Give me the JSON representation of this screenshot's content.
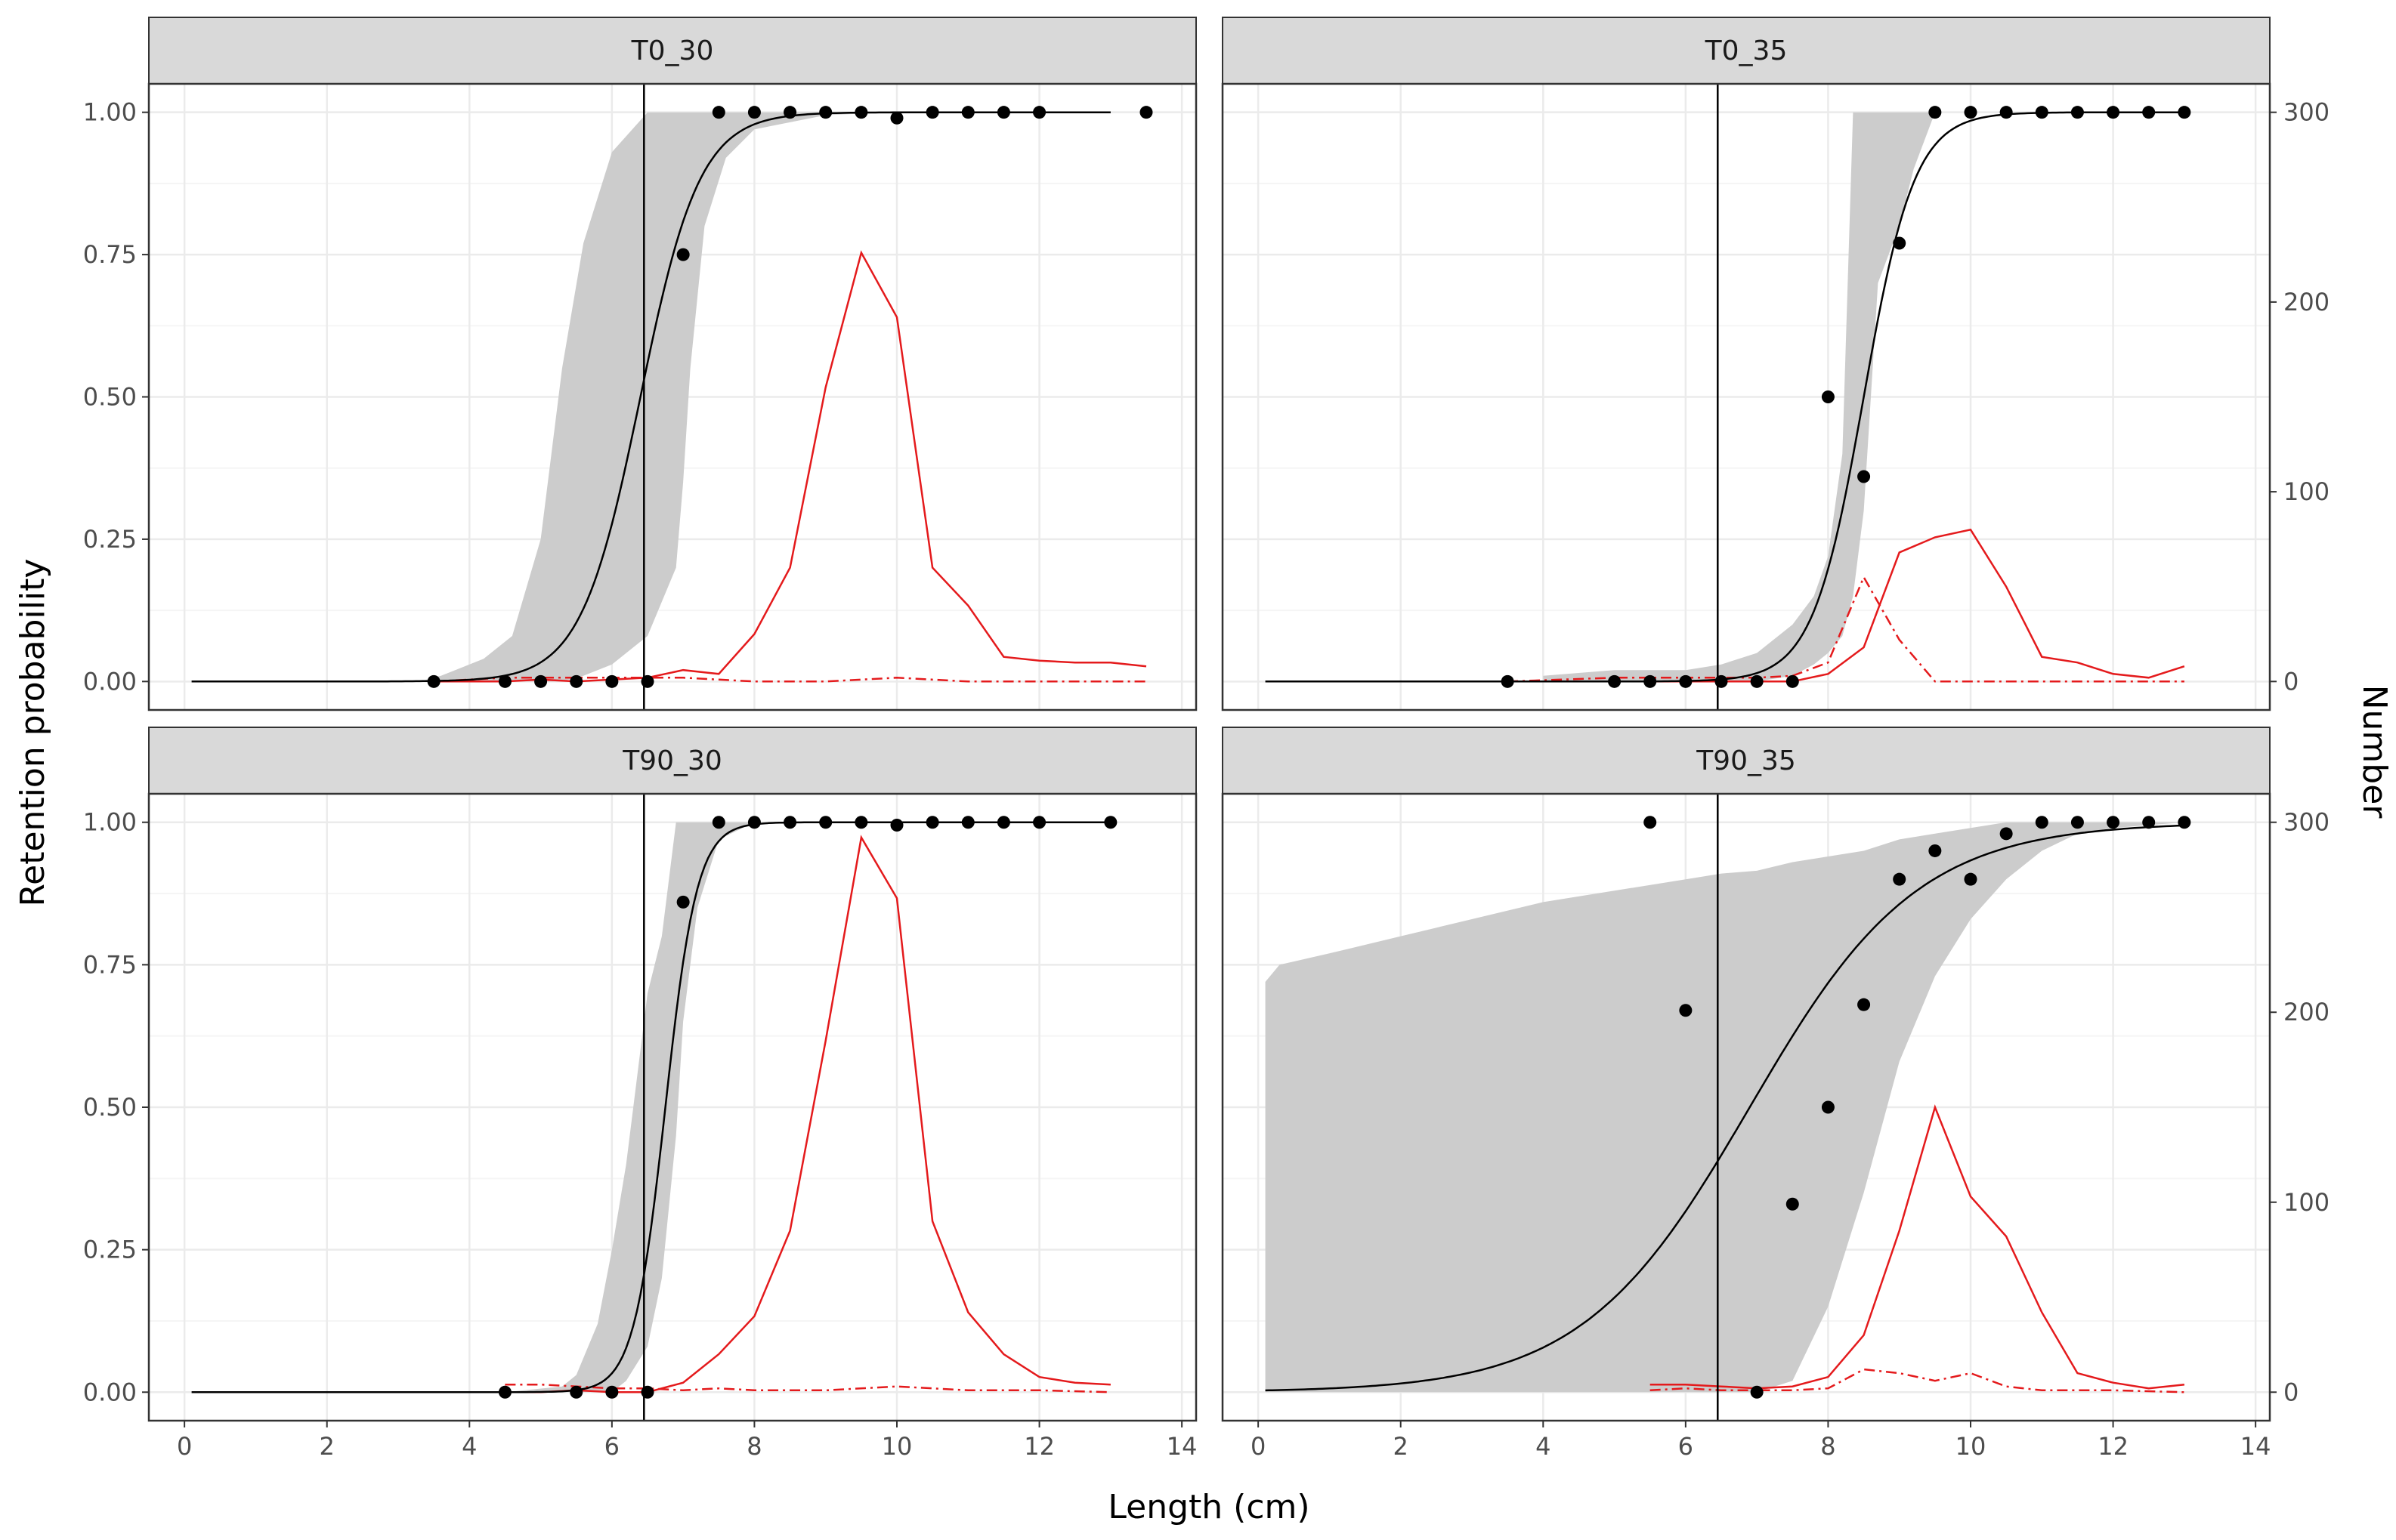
{
  "colors": {
    "strip_bg": "#d9d9d9",
    "border": "#333333",
    "grid_major": "#ebebeb",
    "grid_minor": "#f5f5f5",
    "ribbon": "#cccccc",
    "curve": "#000000",
    "points": "#000000",
    "red": "#e41a1c",
    "vline": "#000000"
  },
  "chart_data": {
    "type": "line",
    "xlabel": "Length (cm)",
    "ylabel_left": "Retention probability",
    "ylabel_right": "Number",
    "xlim": [
      -0.5,
      14.2
    ],
    "x_ticks": [
      0,
      2,
      4,
      6,
      8,
      10,
      12,
      14
    ],
    "x_tick_labels": [
      "0",
      "2",
      "4",
      "6",
      "8",
      "10",
      "12",
      "14"
    ],
    "ylim": [
      -0.05,
      1.05
    ],
    "y_ticks": [
      0,
      0.25,
      0.5,
      0.75,
      1
    ],
    "y_tick_labels": [
      "0.00",
      "0.25",
      "0.50",
      "0.75",
      "1.00"
    ],
    "y2_ticks": [
      0,
      100,
      200,
      300
    ],
    "y2_tick_labels": [
      "0",
      "100",
      "200",
      "300"
    ],
    "y2_scale_max": 300,
    "vline_x": 6.45,
    "panels": [
      {
        "title": "T0_30",
        "curve": {
          "model": "logistic",
          "L50": 6.4,
          "slope": 2.4,
          "x_from": 0.1,
          "x_to": 13.0
        },
        "ribbon": [
          [
            3.3,
            0,
            0
          ],
          [
            3.6,
            0,
            0.01
          ],
          [
            4.2,
            0,
            0.04
          ],
          [
            4.6,
            0,
            0.08
          ],
          [
            5.0,
            0,
            0.25
          ],
          [
            5.3,
            0,
            0.55
          ],
          [
            5.6,
            0.01,
            0.77
          ],
          [
            6.0,
            0.03,
            0.93
          ],
          [
            6.5,
            0.08,
            1
          ],
          [
            6.9,
            0.2,
            1
          ],
          [
            7.0,
            0.35,
            1
          ],
          [
            7.1,
            0.55,
            1
          ],
          [
            7.3,
            0.8,
            1
          ],
          [
            7.6,
            0.92,
            1
          ],
          [
            8.0,
            0.97,
            1
          ],
          [
            9.0,
            0.995,
            1
          ],
          [
            10.0,
            1,
            1
          ]
        ],
        "points": [
          [
            3.5,
            0
          ],
          [
            4.5,
            0
          ],
          [
            5.0,
            0
          ],
          [
            5.5,
            0
          ],
          [
            6.0,
            0
          ],
          [
            6.5,
            0
          ],
          [
            7.0,
            0.75
          ],
          [
            7.5,
            1
          ],
          [
            8.0,
            1
          ],
          [
            8.5,
            1
          ],
          [
            9.0,
            1
          ],
          [
            9.5,
            1
          ],
          [
            10.0,
            0.99
          ],
          [
            10.5,
            1
          ],
          [
            11.0,
            1
          ],
          [
            11.5,
            1
          ],
          [
            12.0,
            1
          ],
          [
            13.5,
            1
          ]
        ],
        "red_solid": [
          [
            3.5,
            0
          ],
          [
            4.5,
            0
          ],
          [
            5.0,
            1
          ],
          [
            5.5,
            0
          ],
          [
            6.0,
            1
          ],
          [
            6.5,
            2
          ],
          [
            7.0,
            6
          ],
          [
            7.5,
            4
          ],
          [
            8.0,
            25
          ],
          [
            8.5,
            60
          ],
          [
            9.0,
            155
          ],
          [
            9.5,
            226
          ],
          [
            10.0,
            192
          ],
          [
            10.5,
            60
          ],
          [
            11.0,
            40
          ],
          [
            11.5,
            13
          ],
          [
            12.0,
            11
          ],
          [
            12.5,
            10
          ],
          [
            13.0,
            10
          ],
          [
            13.5,
            8
          ]
        ],
        "red_dash": [
          [
            3.5,
            0
          ],
          [
            4.5,
            2
          ],
          [
            5.0,
            2
          ],
          [
            5.5,
            2
          ],
          [
            6.0,
            2
          ],
          [
            6.5,
            2
          ],
          [
            7.0,
            2
          ],
          [
            7.5,
            1
          ],
          [
            8.0,
            0
          ],
          [
            9.0,
            0
          ],
          [
            10.0,
            2
          ],
          [
            11.0,
            0
          ],
          [
            12.0,
            0
          ],
          [
            13.0,
            0
          ],
          [
            13.5,
            0
          ]
        ]
      },
      {
        "title": "T0_35",
        "curve": {
          "model": "logistic",
          "L50": 8.5,
          "slope": 2.8,
          "x_from": 0.1,
          "x_to": 13.0
        },
        "ribbon": [
          [
            4.0,
            0,
            0.01
          ],
          [
            5.0,
            0,
            0.02
          ],
          [
            6.0,
            0,
            0.02
          ],
          [
            6.5,
            0,
            0.03
          ],
          [
            7.0,
            0,
            0.05
          ],
          [
            7.5,
            0.01,
            0.1
          ],
          [
            7.8,
            0.03,
            0.15
          ],
          [
            8.0,
            0.05,
            0.22
          ],
          [
            8.2,
            0.08,
            0.4
          ],
          [
            8.35,
            0.15,
            1
          ],
          [
            8.5,
            0.3,
            1
          ],
          [
            8.7,
            0.7,
            1
          ],
          [
            9.0,
            0.8,
            1
          ],
          [
            9.2,
            0.9,
            1
          ],
          [
            9.5,
            1,
            1
          ]
        ],
        "points": [
          [
            3.5,
            0
          ],
          [
            5.0,
            0
          ],
          [
            5.5,
            0
          ],
          [
            6.0,
            0
          ],
          [
            6.5,
            0
          ],
          [
            7.0,
            0
          ],
          [
            7.5,
            0
          ],
          [
            8.0,
            0.5
          ],
          [
            8.5,
            0.36
          ],
          [
            9.0,
            0.77
          ],
          [
            9.5,
            1
          ],
          [
            10.0,
            1
          ],
          [
            10.5,
            1
          ],
          [
            11.0,
            1
          ],
          [
            11.5,
            1
          ],
          [
            12.0,
            1
          ],
          [
            12.5,
            1
          ],
          [
            13.0,
            1
          ]
        ],
        "red_solid": [
          [
            3.5,
            0
          ],
          [
            4.5,
            0
          ],
          [
            5.0,
            0
          ],
          [
            5.5,
            0
          ],
          [
            6.0,
            0
          ],
          [
            6.5,
            0
          ],
          [
            7.0,
            0
          ],
          [
            7.5,
            0
          ],
          [
            8.0,
            4
          ],
          [
            8.5,
            18
          ],
          [
            9.0,
            68
          ],
          [
            9.5,
            76
          ],
          [
            10.0,
            80
          ],
          [
            10.5,
            50
          ],
          [
            11.0,
            13
          ],
          [
            11.5,
            10
          ],
          [
            12.0,
            4
          ],
          [
            12.5,
            2
          ],
          [
            13.0,
            8
          ]
        ],
        "red_dash": [
          [
            3.5,
            0
          ],
          [
            5.0,
            2
          ],
          [
            6.0,
            2
          ],
          [
            7.0,
            2
          ],
          [
            7.5,
            3
          ],
          [
            8.0,
            10
          ],
          [
            8.5,
            55
          ],
          [
            9.0,
            22
          ],
          [
            9.5,
            0
          ],
          [
            10.0,
            0
          ],
          [
            11.0,
            0
          ],
          [
            12.0,
            0
          ],
          [
            13.0,
            0
          ]
        ]
      },
      {
        "title": "T90_30",
        "curve": {
          "model": "logistic",
          "L50": 6.75,
          "slope": 4.5,
          "x_from": 0.1,
          "x_to": 13.0
        },
        "ribbon": [
          [
            4.5,
            0,
            0
          ],
          [
            5.3,
            0,
            0.01
          ],
          [
            5.5,
            0,
            0.03
          ],
          [
            5.8,
            0,
            0.12
          ],
          [
            6.0,
            0,
            0.25
          ],
          [
            6.2,
            0.02,
            0.4
          ],
          [
            6.5,
            0.08,
            0.7
          ],
          [
            6.7,
            0.2,
            0.8
          ],
          [
            6.9,
            0.45,
            1
          ],
          [
            7.0,
            0.65,
            1
          ],
          [
            7.2,
            0.85,
            1
          ],
          [
            7.5,
            0.97,
            1
          ],
          [
            8.0,
            1,
            1
          ]
        ],
        "points": [
          [
            4.5,
            0
          ],
          [
            5.5,
            0
          ],
          [
            6.0,
            0
          ],
          [
            6.5,
            0
          ],
          [
            7.0,
            0.86
          ],
          [
            7.5,
            1
          ],
          [
            8.0,
            1
          ],
          [
            8.5,
            1
          ],
          [
            9.0,
            1
          ],
          [
            9.5,
            1
          ],
          [
            10.0,
            0.995
          ],
          [
            10.5,
            1
          ],
          [
            11.0,
            1
          ],
          [
            11.5,
            1
          ],
          [
            12.0,
            1
          ],
          [
            13.0,
            1
          ]
        ],
        "red_solid": [
          [
            4.5,
            0
          ],
          [
            5.0,
            0
          ],
          [
            5.5,
            1
          ],
          [
            6.0,
            0
          ],
          [
            6.5,
            0
          ],
          [
            7.0,
            5
          ],
          [
            7.5,
            20
          ],
          [
            8.0,
            40
          ],
          [
            8.5,
            85
          ],
          [
            9.0,
            185
          ],
          [
            9.5,
            292
          ],
          [
            10.0,
            260
          ],
          [
            10.5,
            90
          ],
          [
            11.0,
            42
          ],
          [
            11.5,
            20
          ],
          [
            12.0,
            8
          ],
          [
            12.5,
            5
          ],
          [
            13.0,
            4
          ]
        ],
        "red_dash": [
          [
            4.5,
            4
          ],
          [
            5.0,
            4
          ],
          [
            5.5,
            3
          ],
          [
            6.0,
            2
          ],
          [
            6.5,
            2
          ],
          [
            7.0,
            1
          ],
          [
            7.5,
            2
          ],
          [
            8.0,
            1
          ],
          [
            9.0,
            1
          ],
          [
            10.0,
            3
          ],
          [
            11.0,
            1
          ],
          [
            12.0,
            1
          ],
          [
            13.0,
            0
          ]
        ]
      },
      {
        "title": "T90_35",
        "curve": {
          "model": "logistic",
          "L50": 6.9,
          "slope": 0.85,
          "x_from": 0.1,
          "x_to": 13.0
        },
        "ribbon": [
          [
            0.1,
            0,
            0.72
          ],
          [
            0.3,
            0,
            0.75
          ],
          [
            1.0,
            0,
            0.77
          ],
          [
            2.0,
            0,
            0.8
          ],
          [
            3.0,
            0,
            0.83
          ],
          [
            4.0,
            0,
            0.86
          ],
          [
            5.0,
            0,
            0.88
          ],
          [
            6.0,
            0,
            0.9
          ],
          [
            6.5,
            0,
            0.91
          ],
          [
            7.0,
            0,
            0.915
          ],
          [
            7.5,
            0.02,
            0.93
          ],
          [
            8.0,
            0.15,
            0.94
          ],
          [
            8.5,
            0.35,
            0.95
          ],
          [
            9.0,
            0.58,
            0.97
          ],
          [
            9.5,
            0.73,
            0.98
          ],
          [
            10.0,
            0.83,
            0.99
          ],
          [
            10.5,
            0.9,
            1
          ],
          [
            11.0,
            0.95,
            1
          ],
          [
            11.5,
            0.98,
            1
          ],
          [
            12.0,
            0.99,
            1
          ],
          [
            13.0,
            1,
            1
          ]
        ],
        "points": [
          [
            5.5,
            1
          ],
          [
            6.0,
            0.67
          ],
          [
            7.0,
            0
          ],
          [
            7.5,
            0.33
          ],
          [
            8.0,
            0.5
          ],
          [
            8.5,
            0.68
          ],
          [
            9.0,
            0.9
          ],
          [
            9.5,
            0.95
          ],
          [
            10.0,
            0.9
          ],
          [
            10.5,
            0.98
          ],
          [
            11.0,
            1
          ],
          [
            11.5,
            1
          ],
          [
            12.0,
            1
          ],
          [
            12.5,
            1
          ],
          [
            13.0,
            1
          ]
        ],
        "red_solid": [
          [
            5.5,
            4
          ],
          [
            6.0,
            4
          ],
          [
            6.5,
            3
          ],
          [
            7.0,
            2
          ],
          [
            7.5,
            3
          ],
          [
            8.0,
            8
          ],
          [
            8.5,
            30
          ],
          [
            9.0,
            85
          ],
          [
            9.5,
            150
          ],
          [
            10.0,
            103
          ],
          [
            10.5,
            82
          ],
          [
            11.0,
            42
          ],
          [
            11.5,
            10
          ],
          [
            12.0,
            5
          ],
          [
            12.5,
            2
          ],
          [
            13.0,
            4
          ]
        ],
        "red_dash": [
          [
            5.5,
            1
          ],
          [
            6.0,
            2
          ],
          [
            6.5,
            1
          ],
          [
            7.0,
            1
          ],
          [
            7.5,
            1
          ],
          [
            8.0,
            2
          ],
          [
            8.5,
            12
          ],
          [
            9.0,
            10
          ],
          [
            9.5,
            6
          ],
          [
            10.0,
            10
          ],
          [
            10.5,
            3
          ],
          [
            11.0,
            1
          ],
          [
            12.0,
            1
          ],
          [
            13.0,
            0
          ]
        ]
      }
    ]
  }
}
